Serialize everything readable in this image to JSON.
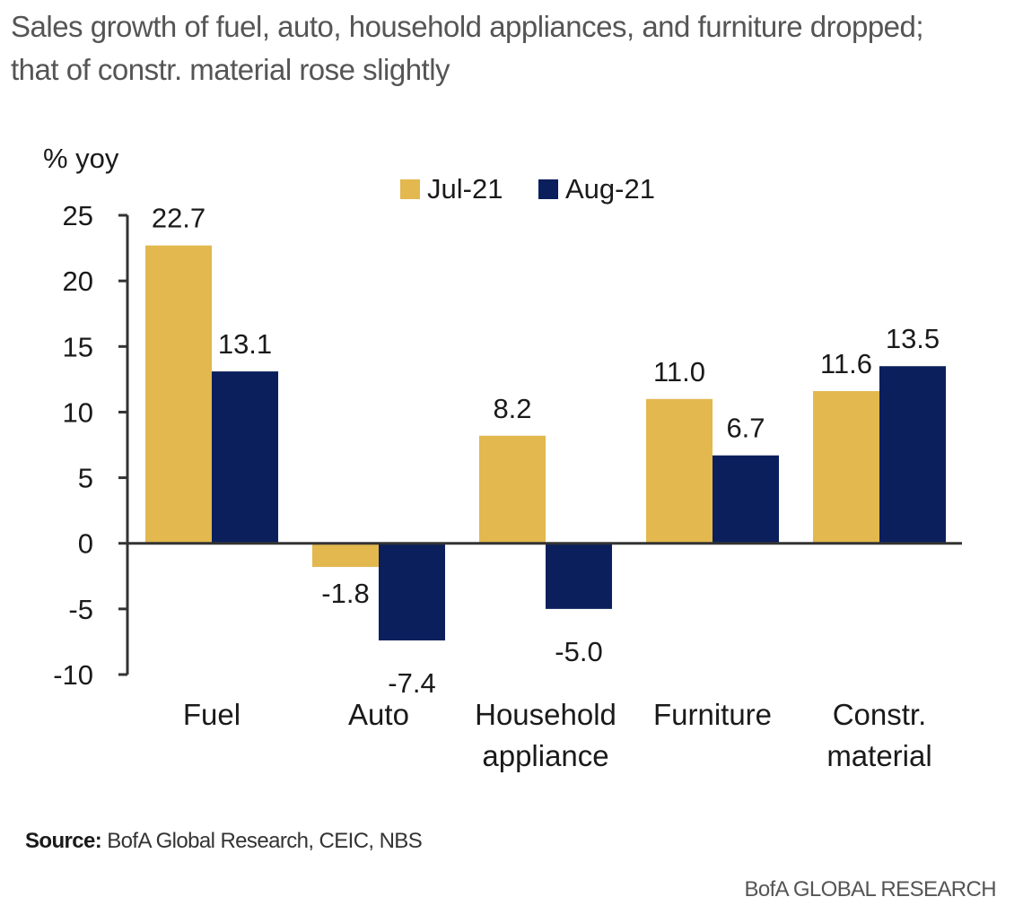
{
  "title_lines": [
    "Sales growth of fuel, auto, household appliances, and furniture dropped;",
    "that of constr. material rose slightly"
  ],
  "source_label": "Source:",
  "source_text": " BofA Global Research, CEIC, NBS",
  "brand": "BofA GLOBAL RESEARCH",
  "chart_data": {
    "type": "bar",
    "ylabel": "% yoy",
    "ylim": [
      -10,
      25
    ],
    "yticks": [
      25,
      20,
      15,
      10,
      5,
      0,
      -5,
      -10
    ],
    "categories": [
      [
        "Fuel"
      ],
      [
        "Auto"
      ],
      [
        "Household",
        "appliance"
      ],
      [
        "Furniture"
      ],
      [
        "Constr.",
        "material"
      ]
    ],
    "series": [
      {
        "name": "Jul-21",
        "color": "#e2b84f",
        "values": [
          22.7,
          -1.8,
          8.2,
          11.0,
          11.6
        ],
        "labels": [
          "22.7",
          "-1.8",
          "8.2",
          "11.0",
          "11.6"
        ]
      },
      {
        "name": "Aug-21",
        "color": "#0b1f5c",
        "values": [
          13.1,
          -7.4,
          -5.0,
          6.7,
          13.5
        ],
        "labels": [
          "13.1",
          "-7.4",
          "-5.0",
          "6.7",
          "13.5"
        ]
      }
    ],
    "legend_position": "top-center",
    "grid": false
  }
}
